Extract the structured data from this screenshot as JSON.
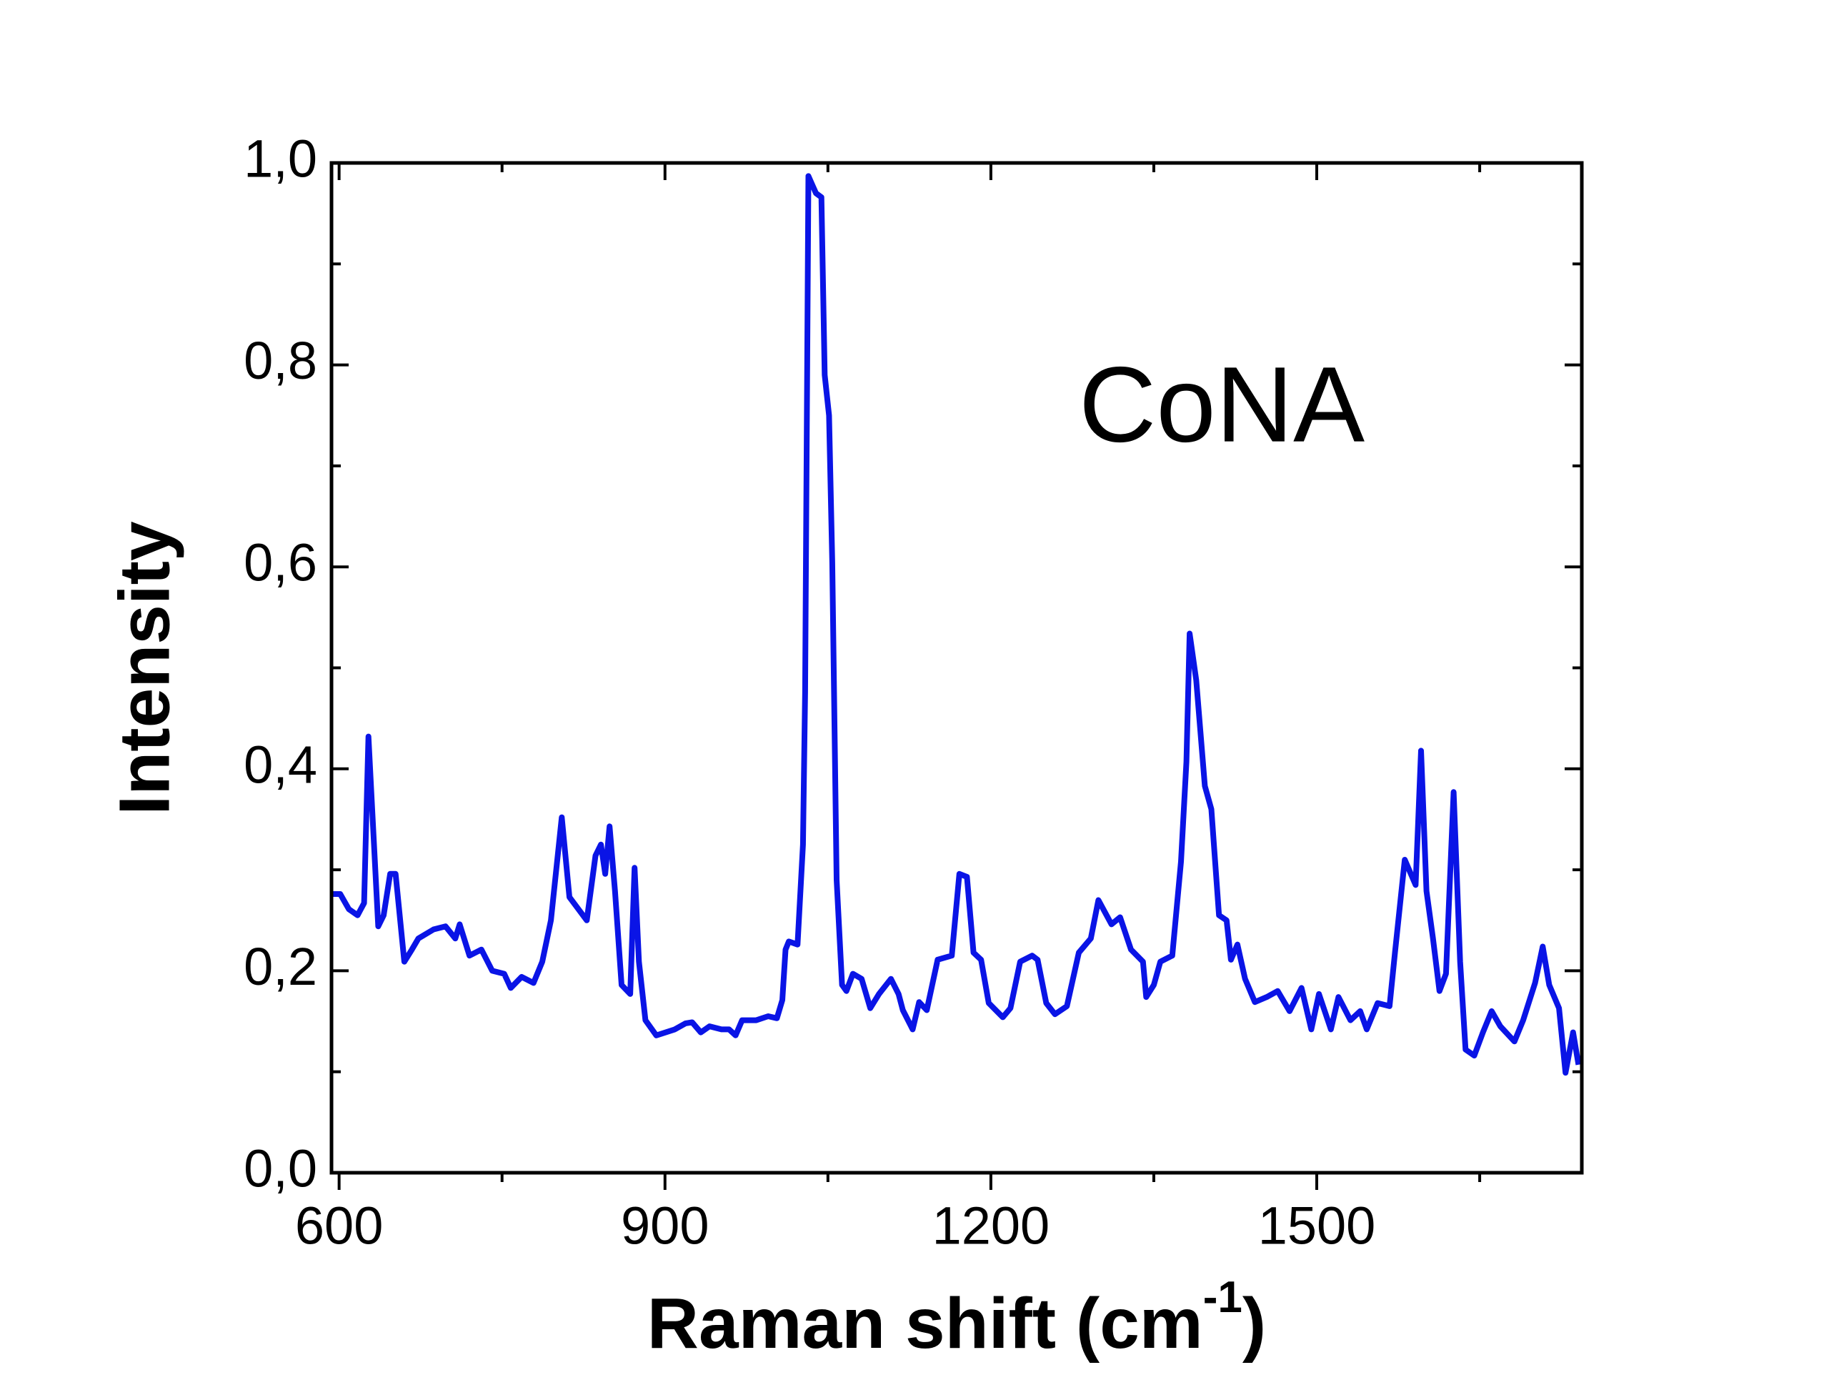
{
  "chart_data": {
    "type": "line",
    "xlabel": {
      "text": "Raman shift (cm",
      "superscript": "-1",
      "close": ")"
    },
    "ylabel": "Intensity",
    "annotation": "CoNA",
    "x": [
      594,
      601,
      609,
      617,
      623,
      627,
      631,
      636,
      641,
      647,
      652,
      660,
      667,
      673,
      687,
      698,
      707,
      711,
      720,
      731,
      741,
      752,
      758,
      768,
      779,
      787,
      795,
      805,
      812,
      828,
      836,
      841,
      845,
      849,
      854,
      860,
      868,
      872,
      876,
      882,
      892,
      909,
      919,
      925,
      933,
      941,
      952,
      959,
      965,
      971,
      984,
      995,
      1003,
      1008,
      1011,
      1014,
      1022,
      1027,
      1029,
      1032,
      1039,
      1044,
      1047,
      1051,
      1054,
      1058,
      1063,
      1067,
      1073,
      1081,
      1089,
      1097,
      1108,
      1115,
      1119,
      1128,
      1134,
      1141,
      1151,
      1164,
      1171,
      1178,
      1184,
      1191,
      1198,
      1211,
      1218,
      1227,
      1238,
      1243,
      1251,
      1259,
      1270,
      1281,
      1292,
      1299,
      1311,
      1319,
      1329,
      1340,
      1343,
      1350,
      1356,
      1367,
      1375,
      1380,
      1383,
      1389,
      1397,
      1403,
      1410,
      1417,
      1421,
      1427,
      1434,
      1443,
      1454,
      1464,
      1475,
      1486,
      1495,
      1502,
      1513,
      1520,
      1531,
      1540,
      1546,
      1556,
      1567,
      1572,
      1581,
      1591,
      1596,
      1601,
      1607,
      1613,
      1619,
      1626,
      1632,
      1637,
      1645,
      1653,
      1661,
      1669,
      1682,
      1690,
      1701,
      1708,
      1714,
      1723,
      1729,
      1736,
      1741
    ],
    "series": [
      {
        "name": "CoNA",
        "color": "#0a14e6",
        "values": [
          0.276,
          0.276,
          0.261,
          0.255,
          0.267,
          0.432,
          0.348,
          0.244,
          0.255,
          0.296,
          0.296,
          0.209,
          0.221,
          0.232,
          0.241,
          0.244,
          0.232,
          0.246,
          0.215,
          0.221,
          0.2,
          0.197,
          0.183,
          0.194,
          0.188,
          0.209,
          0.25,
          0.352,
          0.273,
          0.25,
          0.314,
          0.325,
          0.296,
          0.343,
          0.279,
          0.186,
          0.177,
          0.302,
          0.209,
          0.151,
          0.136,
          0.142,
          0.148,
          0.149,
          0.139,
          0.145,
          0.142,
          0.142,
          0.136,
          0.151,
          0.151,
          0.155,
          0.153,
          0.171,
          0.221,
          0.229,
          0.226,
          0.325,
          0.476,
          0.987,
          0.97,
          0.966,
          0.79,
          0.75,
          0.604,
          0.29,
          0.186,
          0.18,
          0.197,
          0.192,
          0.163,
          0.177,
          0.192,
          0.177,
          0.161,
          0.142,
          0.169,
          0.161,
          0.211,
          0.215,
          0.296,
          0.293,
          0.218,
          0.211,
          0.168,
          0.154,
          0.163,
          0.209,
          0.215,
          0.211,
          0.168,
          0.157,
          0.165,
          0.218,
          0.232,
          0.27,
          0.246,
          0.253,
          0.221,
          0.209,
          0.174,
          0.186,
          0.209,
          0.215,
          0.308,
          0.407,
          0.534,
          0.488,
          0.383,
          0.36,
          0.255,
          0.25,
          0.211,
          0.226,
          0.192,
          0.169,
          0.174,
          0.18,
          0.16,
          0.183,
          0.142,
          0.177,
          0.142,
          0.174,
          0.151,
          0.16,
          0.142,
          0.168,
          0.165,
          0.218,
          0.31,
          0.285,
          0.418,
          0.279,
          0.232,
          0.18,
          0.197,
          0.377,
          0.209,
          0.122,
          0.116,
          0.139,
          0.16,
          0.145,
          0.13,
          0.151,
          0.188,
          0.224,
          0.186,
          0.163,
          0.099,
          0.139,
          0.107
        ]
      }
    ],
    "xlim": [
      593,
      1744
    ],
    "xticks": [
      600,
      900,
      1200,
      1500
    ],
    "xminorticks": [
      750,
      1050,
      1350,
      1650
    ],
    "ylim": [
      0,
      1
    ],
    "yticks": [
      {
        "value": 0,
        "label": "0,0"
      },
      {
        "value": 0.2,
        "label": "0,2"
      },
      {
        "value": 0.4,
        "label": "0,4"
      },
      {
        "value": 0.6,
        "label": "0,6"
      },
      {
        "value": 0.8,
        "label": "0,8"
      },
      {
        "value": 1,
        "label": "1,0"
      }
    ],
    "yminorticks": [
      0.1,
      0.3,
      0.5,
      0.7,
      0.9
    ],
    "grid": false
  }
}
